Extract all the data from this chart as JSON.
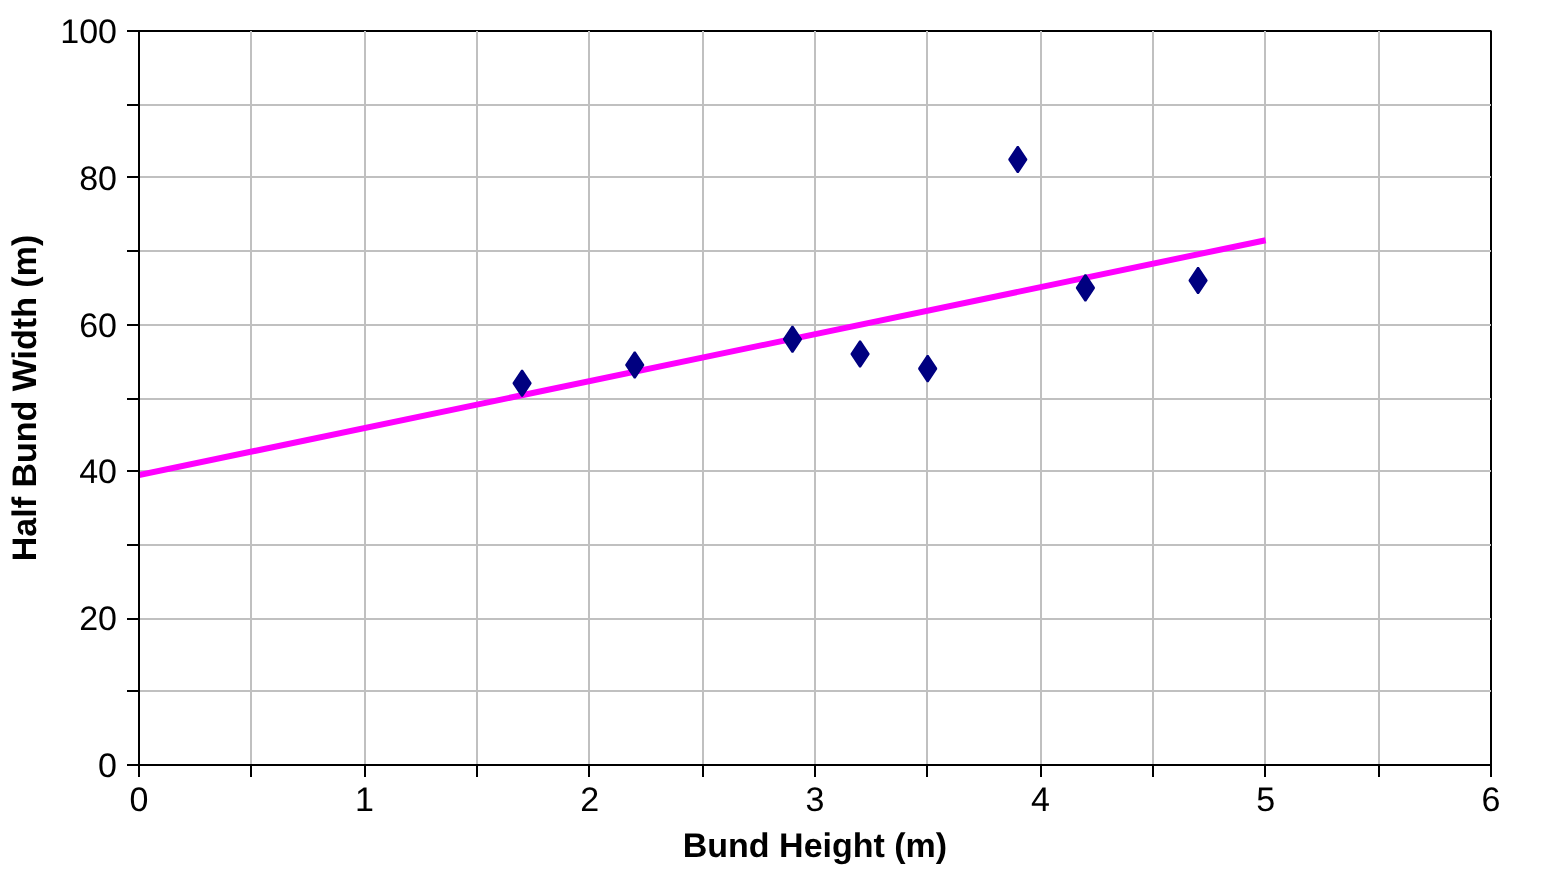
{
  "chart_data": {
    "type": "scatter",
    "xlabel": "Bund Height (m)",
    "ylabel": "Half Bund Width (m)",
    "xlim": [
      0,
      6
    ],
    "ylim": [
      0,
      100
    ],
    "xticks": [
      0,
      {
        "value": 0.5,
        "label": null
      },
      1,
      {
        "value": 1.5,
        "label": null
      },
      2,
      {
        "value": 2.5,
        "label": null
      },
      3,
      {
        "value": 3.5,
        "label": null
      },
      4,
      {
        "value": 4.5,
        "label": null
      },
      5,
      {
        "value": 5.5,
        "label": null
      },
      6
    ],
    "yticks": [
      0,
      {
        "value": 10,
        "label": null
      },
      20,
      {
        "value": 30,
        "label": null
      },
      40,
      {
        "value": 50,
        "label": null
      },
      60,
      {
        "value": 70,
        "label": null
      },
      80,
      {
        "value": 90,
        "label": null
      },
      100
    ],
    "grid": true,
    "series": [
      {
        "marker": "diamond",
        "color": "#000080",
        "x": [
          1.7,
          2.2,
          2.9,
          3.2,
          3.5,
          3.9,
          4.2,
          4.7
        ],
        "values": [
          52,
          54.5,
          58,
          56,
          54,
          82.5,
          65,
          66
        ]
      },
      {
        "type": "line",
        "color": "#ff00ff",
        "x": [
          0,
          5
        ],
        "values": [
          39.5,
          71.5
        ]
      }
    ]
  }
}
